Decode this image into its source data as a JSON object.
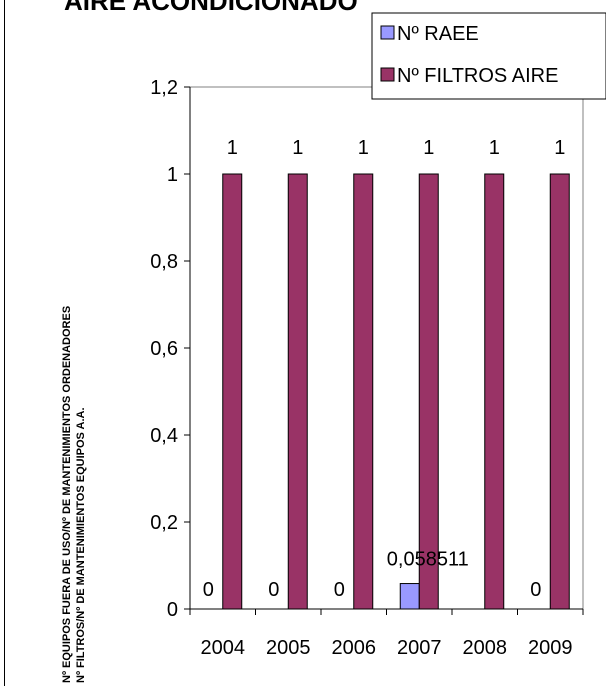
{
  "chart_data": {
    "type": "bar",
    "title": "AIRE ACONDICIONADO",
    "ylabel_lines": [
      "Nº EQUIPOS FUERA DE USO/Nº DE MANTENIMIENTOS ORDENADORES",
      "Nº FILTROS/Nº DE MANTENIMIENTOS EQUIPOS A.A."
    ],
    "categories": [
      "2004",
      "2005",
      "2006",
      "2007",
      "2008",
      "2009"
    ],
    "series": [
      {
        "name": "Nº RAEE",
        "color": "#9999ff",
        "values": [
          0,
          0,
          0,
          0.058511,
          null,
          0
        ],
        "labels": [
          "0",
          "0",
          "0",
          "0,058511",
          "",
          "0"
        ]
      },
      {
        "name": "Nº FILTROS AIRE",
        "color": "#993366",
        "values": [
          1,
          1,
          1,
          1,
          1,
          1
        ],
        "labels": [
          "1",
          "1",
          "1",
          "1",
          "1",
          "1"
        ]
      }
    ],
    "yticks": [
      0,
      0.2,
      0.4,
      0.6,
      0.8,
      1,
      1.2
    ],
    "ytick_labels": [
      "0",
      "0,2",
      "0,4",
      "0,6",
      "0,8",
      "1",
      "1,2"
    ],
    "ylim": [
      0,
      1.2
    ],
    "grid": false,
    "legend_position": "top-right"
  }
}
